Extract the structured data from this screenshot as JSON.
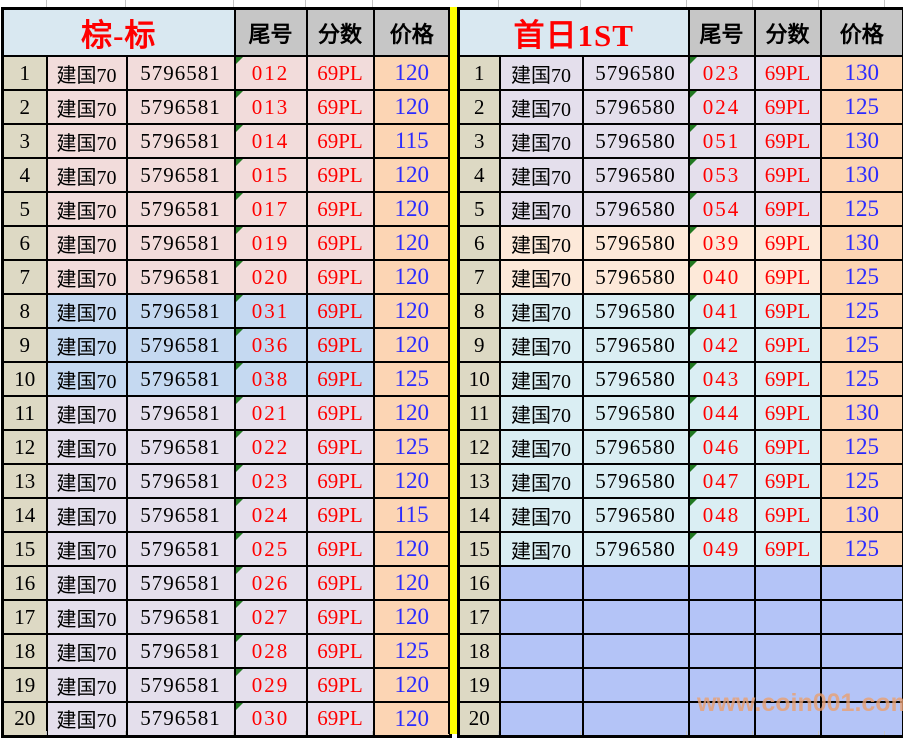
{
  "colors": {
    "titleBlue": "#d9e8f1",
    "headGray": "#c6c6c6",
    "beige": "#ddd9c4",
    "rose": "#f2dcdb",
    "blue_band": "#c5d9f1",
    "lavender": "#e4dfec",
    "lightpeach": "#fde9d9",
    "turquoise": "#daeef3",
    "periwinkle": "#b4c4f7",
    "price_peach": "#fcd5b4",
    "red": "#ff0000",
    "blue": "#2b2bff",
    "yellow": "#ffff00",
    "green": "#217821",
    "watermark": "#e9a172"
  },
  "watermark": "www.coin001.com",
  "tables": [
    {
      "id": "left",
      "title": "棕-标",
      "columns": {
        "tail": "尾号",
        "score": "分数",
        "price": "价格"
      },
      "rows": [
        {
          "num": "1",
          "name": "建国70",
          "serial": "5796581",
          "tail": "012",
          "score": "69PL",
          "price": "120",
          "band": "rose"
        },
        {
          "num": "2",
          "name": "建国70",
          "serial": "5796581",
          "tail": "013",
          "score": "69PL",
          "price": "120",
          "band": "rose"
        },
        {
          "num": "3",
          "name": "建国70",
          "serial": "5796581",
          "tail": "014",
          "score": "69PL",
          "price": "115",
          "band": "rose"
        },
        {
          "num": "4",
          "name": "建国70",
          "serial": "5796581",
          "tail": "015",
          "score": "69PL",
          "price": "120",
          "band": "rose"
        },
        {
          "num": "5",
          "name": "建国70",
          "serial": "5796581",
          "tail": "017",
          "score": "69PL",
          "price": "120",
          "band": "rose"
        },
        {
          "num": "6",
          "name": "建国70",
          "serial": "5796581",
          "tail": "019",
          "score": "69PL",
          "price": "120",
          "band": "rose"
        },
        {
          "num": "7",
          "name": "建国70",
          "serial": "5796581",
          "tail": "020",
          "score": "69PL",
          "price": "120",
          "band": "rose"
        },
        {
          "num": "8",
          "name": "建国70",
          "serial": "5796581",
          "tail": "031",
          "score": "69PL",
          "price": "120",
          "band": "blue_band"
        },
        {
          "num": "9",
          "name": "建国70",
          "serial": "5796581",
          "tail": "036",
          "score": "69PL",
          "price": "120",
          "band": "blue_band"
        },
        {
          "num": "10",
          "name": "建国70",
          "serial": "5796581",
          "tail": "038",
          "score": "69PL",
          "price": "125",
          "band": "blue_band"
        },
        {
          "num": "11",
          "name": "建国70",
          "serial": "5796581",
          "tail": "021",
          "score": "69PL",
          "price": "120",
          "band": "lavender"
        },
        {
          "num": "12",
          "name": "建国70",
          "serial": "5796581",
          "tail": "022",
          "score": "69PL",
          "price": "125",
          "band": "lavender"
        },
        {
          "num": "13",
          "name": "建国70",
          "serial": "5796581",
          "tail": "023",
          "score": "69PL",
          "price": "120",
          "band": "lavender"
        },
        {
          "num": "14",
          "name": "建国70",
          "serial": "5796581",
          "tail": "024",
          "score": "69PL",
          "price": "115",
          "band": "lavender"
        },
        {
          "num": "15",
          "name": "建国70",
          "serial": "5796581",
          "tail": "025",
          "score": "69PL",
          "price": "120",
          "band": "lavender"
        },
        {
          "num": "16",
          "name": "建国70",
          "serial": "5796581",
          "tail": "026",
          "score": "69PL",
          "price": "120",
          "band": "lavender"
        },
        {
          "num": "17",
          "name": "建国70",
          "serial": "5796581",
          "tail": "027",
          "score": "69PL",
          "price": "120",
          "band": "lavender"
        },
        {
          "num": "18",
          "name": "建国70",
          "serial": "5796581",
          "tail": "028",
          "score": "69PL",
          "price": "125",
          "band": "lavender"
        },
        {
          "num": "19",
          "name": "建国70",
          "serial": "5796581",
          "tail": "029",
          "score": "69PL",
          "price": "120",
          "band": "lavender"
        },
        {
          "num": "20",
          "name": "建国70",
          "serial": "5796581",
          "tail": "030",
          "score": "69PL",
          "price": "120",
          "band": "lavender"
        }
      ]
    },
    {
      "id": "right",
      "title": "首日1ST",
      "columns": {
        "tail": "尾号",
        "score": "分数",
        "price": "价格"
      },
      "rows": [
        {
          "num": "1",
          "name": "建国70",
          "serial": "5796580",
          "tail": "023",
          "score": "69PL",
          "price": "130",
          "band": "lavender"
        },
        {
          "num": "2",
          "name": "建国70",
          "serial": "5796580",
          "tail": "024",
          "score": "69PL",
          "price": "125",
          "band": "lavender"
        },
        {
          "num": "3",
          "name": "建国70",
          "serial": "5796580",
          "tail": "051",
          "score": "69PL",
          "price": "130",
          "band": "lavender"
        },
        {
          "num": "4",
          "name": "建国70",
          "serial": "5796580",
          "tail": "053",
          "score": "69PL",
          "price": "130",
          "band": "lavender"
        },
        {
          "num": "5",
          "name": "建国70",
          "serial": "5796580",
          "tail": "054",
          "score": "69PL",
          "price": "125",
          "band": "lavender"
        },
        {
          "num": "6",
          "name": "建国70",
          "serial": "5796580",
          "tail": "039",
          "score": "69PL",
          "price": "130",
          "band": "lightpeach"
        },
        {
          "num": "7",
          "name": "建国70",
          "serial": "5796580",
          "tail": "040",
          "score": "69PL",
          "price": "125",
          "band": "lightpeach"
        },
        {
          "num": "8",
          "name": "建国70",
          "serial": "5796580",
          "tail": "041",
          "score": "69PL",
          "price": "125",
          "band": "turquoise"
        },
        {
          "num": "9",
          "name": "建国70",
          "serial": "5796580",
          "tail": "042",
          "score": "69PL",
          "price": "125",
          "band": "turquoise"
        },
        {
          "num": "10",
          "name": "建国70",
          "serial": "5796580",
          "tail": "043",
          "score": "69PL",
          "price": "125",
          "band": "turquoise"
        },
        {
          "num": "11",
          "name": "建国70",
          "serial": "5796580",
          "tail": "044",
          "score": "69PL",
          "price": "130",
          "band": "turquoise"
        },
        {
          "num": "12",
          "name": "建国70",
          "serial": "5796580",
          "tail": "046",
          "score": "69PL",
          "price": "125",
          "band": "turquoise"
        },
        {
          "num": "13",
          "name": "建国70",
          "serial": "5796580",
          "tail": "047",
          "score": "69PL",
          "price": "125",
          "band": "turquoise"
        },
        {
          "num": "14",
          "name": "建国70",
          "serial": "5796580",
          "tail": "048",
          "score": "69PL",
          "price": "130",
          "band": "turquoise"
        },
        {
          "num": "15",
          "name": "建国70",
          "serial": "5796580",
          "tail": "049",
          "score": "69PL",
          "price": "125",
          "band": "turquoise"
        },
        {
          "num": "16",
          "name": "",
          "serial": "",
          "tail": "",
          "score": "",
          "price": "",
          "band": "periwinkle",
          "empty": true
        },
        {
          "num": "17",
          "name": "",
          "serial": "",
          "tail": "",
          "score": "",
          "price": "",
          "band": "periwinkle",
          "empty": true
        },
        {
          "num": "18",
          "name": "",
          "serial": "",
          "tail": "",
          "score": "",
          "price": "",
          "band": "periwinkle",
          "empty": true
        },
        {
          "num": "19",
          "name": "",
          "serial": "",
          "tail": "",
          "score": "",
          "price": "",
          "band": "periwinkle",
          "empty": true
        },
        {
          "num": "20",
          "name": "",
          "serial": "",
          "tail": "",
          "score": "",
          "price": "",
          "band": "periwinkle",
          "empty": true
        }
      ]
    }
  ]
}
